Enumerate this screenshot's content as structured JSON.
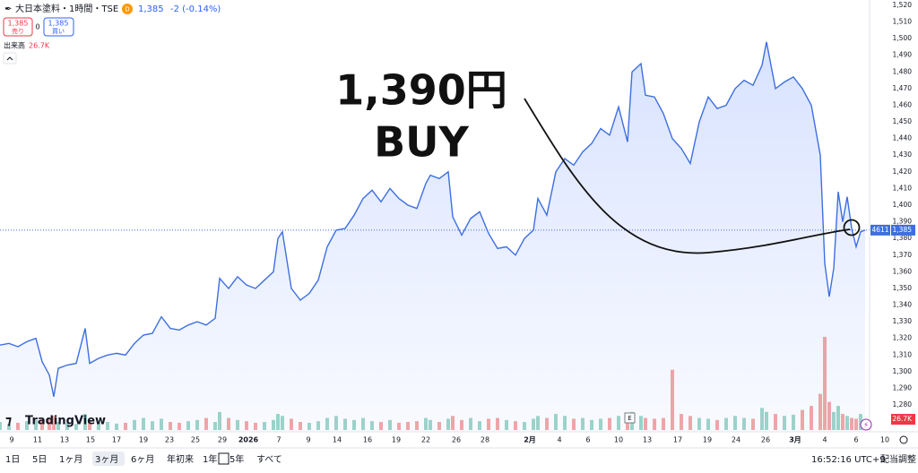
{
  "header": {
    "symbol": "大日本塗料・1時間・TSE",
    "badge": "D",
    "price": "1,385",
    "change": "-2 (-0.14%)",
    "sell_price": "1,385",
    "sell_label": "売り",
    "spread": "0",
    "buy_price": "1,385",
    "buy_label": "買い",
    "volume_label": "出来高",
    "volume_value": "26.7K"
  },
  "toolbar": {
    "ranges": [
      "1日",
      "5日",
      "1ヶ月",
      "3ヶ月",
      "6ヶ月",
      "年初来",
      "1年",
      "5年",
      "すべて"
    ],
    "time": "16:52:16 UTC+9",
    "adjust": "配当調整"
  },
  "chart_data": {
    "type": "area",
    "color": "#3d6fe0",
    "x": [
      0,
      2,
      4,
      6,
      8,
      9.4,
      11,
      12,
      13,
      15,
      17,
      19,
      20,
      22,
      24,
      26,
      28,
      30,
      32,
      34,
      36,
      38,
      40,
      42,
      44,
      46,
      48,
      49,
      51,
      53,
      55,
      57,
      59,
      61,
      62,
      63,
      65,
      67,
      69,
      71,
      73,
      75,
      77,
      79,
      81,
      83,
      85,
      87,
      89,
      91,
      93,
      95,
      96,
      98,
      100,
      101,
      103,
      105,
      107,
      109,
      111,
      113,
      115,
      117,
      119,
      120,
      122,
      124,
      126,
      128,
      130,
      132,
      134,
      136,
      138,
      140,
      141,
      143,
      144,
      146,
      148,
      150,
      152,
      154,
      156,
      158,
      160,
      162,
      164,
      166,
      168,
      170,
      171,
      173,
      175,
      177,
      179,
      181,
      183,
      184,
      185,
      186,
      187,
      188,
      189,
      190,
      191,
      192,
      193
    ],
    "values": [
      1316,
      1317,
      1315,
      1318,
      1320,
      1306,
      1298,
      1285,
      1302,
      1304,
      1305,
      1326,
      1305,
      1308,
      1310,
      1311,
      1310,
      1317,
      1322,
      1323,
      1333,
      1326,
      1325,
      1328,
      1330,
      1328,
      1332,
      1356,
      1350,
      1357,
      1352,
      1350,
      1355,
      1360,
      1380,
      1384,
      1350,
      1343,
      1347,
      1355,
      1375,
      1385,
      1386,
      1394,
      1404,
      1409,
      1402,
      1410,
      1404,
      1400,
      1398,
      1413,
      1418,
      1416,
      1420,
      1393,
      1382,
      1392,
      1396,
      1383,
      1374,
      1375,
      1370,
      1380,
      1385,
      1404,
      1394,
      1420,
      1428,
      1424,
      1432,
      1437,
      1446,
      1442,
      1459,
      1438,
      1480,
      1485,
      1466,
      1465,
      1455,
      1440,
      1434,
      1425,
      1450,
      1465,
      1458,
      1460,
      1470,
      1475,
      1472,
      1484,
      1498,
      1470,
      1474,
      1477,
      1470,
      1460,
      1430,
      1365,
      1345,
      1362,
      1408,
      1390,
      1405,
      1386,
      1375,
      1384,
      1385
    ],
    "volume": {
      "values": [
        20,
        15,
        18,
        22,
        25,
        30,
        28,
        35,
        20,
        18,
        15,
        40,
        22,
        18,
        20,
        16,
        18,
        25,
        30,
        22,
        28,
        20,
        18,
        22,
        25,
        30,
        20,
        45,
        30,
        25,
        22,
        18,
        20,
        25,
        40,
        35,
        28,
        20,
        18,
        22,
        30,
        35,
        28,
        25,
        30,
        22,
        20,
        25,
        18,
        20,
        22,
        30,
        25,
        20,
        28,
        35,
        25,
        30,
        22,
        28,
        30,
        25,
        22,
        20,
        28,
        35,
        30,
        40,
        35,
        28,
        30,
        25,
        28,
        30,
        35,
        40,
        45,
        35,
        30,
        28,
        30,
        150,
        40,
        35,
        30,
        28,
        25,
        30,
        35,
        30,
        28,
        55,
        45,
        40,
        35,
        38,
        50,
        60,
        90,
        232,
        70,
        45,
        60,
        40,
        35,
        30,
        28,
        40,
        26.7
      ],
      "up_color": "#9fd6c8",
      "down_color": "#f5a7a5",
      "last_label": "26.7K"
    },
    "last_price": {
      "value": 1385,
      "label": "1,385",
      "code": "4611"
    },
    "annotation": [
      "1,390円",
      "BUY"
    ],
    "watermark": "TradingView",
    "event_marker": "E",
    "xlim": [
      0,
      200
    ],
    "xticks": [
      {
        "value": 2.6,
        "label": "9"
      },
      {
        "value": 8.4,
        "label": "11"
      },
      {
        "value": 14.4,
        "label": "13"
      },
      {
        "value": 20.2,
        "label": "15"
      },
      {
        "value": 26,
        "label": "17"
      },
      {
        "value": 32,
        "label": "19"
      },
      {
        "value": 37.8,
        "label": "23"
      },
      {
        "value": 43.6,
        "label": "25"
      },
      {
        "value": 49.6,
        "label": "29"
      },
      {
        "value": 55.4,
        "label": "2026"
      },
      {
        "value": 62.2,
        "label": "7"
      },
      {
        "value": 68.8,
        "label": "9"
      },
      {
        "value": 75.2,
        "label": "14"
      },
      {
        "value": 82,
        "label": "16"
      },
      {
        "value": 88.4,
        "label": "19"
      },
      {
        "value": 95,
        "label": "22"
      },
      {
        "value": 101.8,
        "label": "26"
      },
      {
        "value": 108.2,
        "label": "28"
      },
      {
        "value": 118.2,
        "label": "2月"
      },
      {
        "value": 124.8,
        "label": "4"
      },
      {
        "value": 131.2,
        "label": "6"
      },
      {
        "value": 138,
        "label": "10"
      },
      {
        "value": 144.4,
        "label": "13"
      },
      {
        "value": 151.2,
        "label": "17"
      },
      {
        "value": 157.8,
        "label": "19"
      },
      {
        "value": 164.2,
        "label": "24"
      },
      {
        "value": 170.8,
        "label": "26"
      },
      {
        "value": 177.4,
        "label": "3月"
      },
      {
        "value": 184,
        "label": "4"
      },
      {
        "value": 191,
        "label": "6"
      },
      {
        "value": 197.4,
        "label": "10"
      }
    ],
    "ylim": [
      1263.9,
      1523.2
    ],
    "yticks": [
      {
        "value": 1280,
        "label": "1,280"
      },
      {
        "value": 1290,
        "label": "1,290"
      },
      {
        "value": 1300,
        "label": "1,300"
      },
      {
        "value": 1310,
        "label": "1,310"
      },
      {
        "value": 1320,
        "label": "1,320"
      },
      {
        "value": 1330,
        "label": "1,330"
      },
      {
        "value": 1340,
        "label": "1,340"
      },
      {
        "value": 1350,
        "label": "1,350"
      },
      {
        "value": 1360,
        "label": "1,360"
      },
      {
        "value": 1370,
        "label": "1,370"
      },
      {
        "value": 1380,
        "label": "1,380"
      },
      {
        "value": 1390,
        "label": "1,390"
      },
      {
        "value": 1400,
        "label": "1,400"
      },
      {
        "value": 1410,
        "label": "1,410"
      },
      {
        "value": 1420,
        "label": "1,420"
      },
      {
        "value": 1430,
        "label": "1,430"
      },
      {
        "value": 1440,
        "label": "1,440"
      },
      {
        "value": 1450,
        "label": "1,450"
      },
      {
        "value": 1460,
        "label": "1,460"
      },
      {
        "value": 1470,
        "label": "1,470"
      },
      {
        "value": 1480,
        "label": "1,480"
      },
      {
        "value": 1490,
        "label": "1,490"
      },
      {
        "value": 1500,
        "label": "1,500"
      },
      {
        "value": 1510,
        "label": "1,510"
      },
      {
        "value": 1520,
        "label": "1,520"
      }
    ]
  }
}
